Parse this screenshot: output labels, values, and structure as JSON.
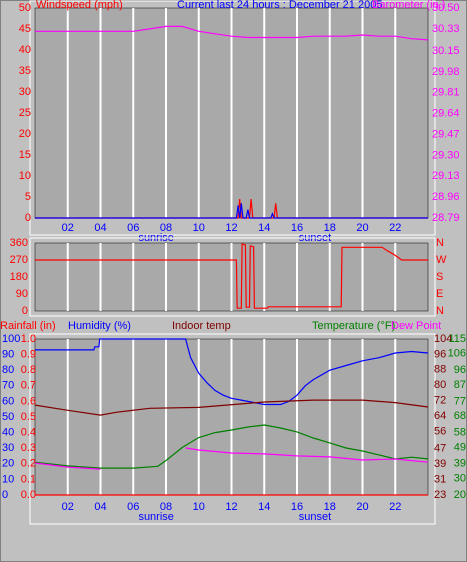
{
  "chart_data": [
    {
      "type": "line",
      "title": "Current last 24 hours : December 21 2005",
      "ylabel": "Windspeed (mph)",
      "y2label": "Barometer (in.)",
      "xlim": [
        0,
        24
      ],
      "xticks": [
        {
          "value": 2,
          "label": "02"
        },
        {
          "value": 4,
          "label": "04"
        },
        {
          "value": 6,
          "label": "06"
        },
        {
          "value": 8,
          "label": "08"
        },
        10,
        12,
        14,
        16,
        18,
        20,
        22
      ],
      "annotations": [
        "sunrise",
        "sunset"
      ],
      "ylim": [
        0,
        50
      ],
      "yticks": [
        0,
        5,
        10,
        15,
        20,
        25,
        30,
        35,
        40,
        45,
        50
      ],
      "y2lim": [
        28.79,
        30.5
      ],
      "y2ticks": [
        28.79,
        28.96,
        29.13,
        {
          "value": 29.3,
          "label": "29.30"
        },
        29.47,
        29.64,
        29.81,
        29.98,
        30.15,
        30.33,
        {
          "value": 30.5,
          "label": "30.50"
        }
      ],
      "axis_colors": {
        "y": "#ff0000",
        "y2": "#ff00ff"
      },
      "grid": true,
      "series": [
        {
          "axis": "y2",
          "color": "#ff00ff",
          "x": [
            0,
            2,
            4,
            6,
            7,
            8,
            8.5,
            9,
            9.5,
            10,
            11,
            12,
            13,
            14,
            15,
            16,
            17,
            18,
            19,
            20,
            21,
            22,
            23,
            24
          ],
          "values": [
            30.31,
            30.31,
            30.31,
            30.31,
            30.33,
            30.35,
            30.35,
            30.35,
            30.33,
            30.31,
            30.29,
            30.27,
            30.26,
            30.26,
            30.26,
            30.26,
            30.27,
            30.27,
            30.27,
            30.28,
            30.27,
            30.27,
            30.25,
            30.24
          ]
        },
        {
          "axis": "y",
          "color": "#ff0000",
          "x": [
            0,
            12.4,
            12.5,
            12.6,
            13.1,
            13.2,
            13.3,
            14.6,
            14.7,
            14.8,
            24
          ],
          "values": [
            0,
            0,
            4.5,
            0,
            0,
            4.5,
            0,
            0,
            3.5,
            0,
            0
          ]
        },
        {
          "axis": "y",
          "color": "#0000ff",
          "x": [
            0,
            12.3,
            12.4,
            12.5,
            12.6,
            12.7,
            12.9,
            13.0,
            13.1,
            14.4,
            14.5,
            14.6,
            24
          ],
          "values": [
            0,
            0,
            3,
            0,
            3.5,
            0,
            0,
            2,
            0,
            0,
            1,
            0,
            0
          ]
        }
      ]
    },
    {
      "type": "line",
      "xlim": [
        0,
        24
      ],
      "xticks": [
        {
          "value": 2,
          "label": "02"
        },
        {
          "value": 4,
          "label": "04"
        },
        {
          "value": 6,
          "label": "06"
        },
        {
          "value": 8,
          "label": "08"
        },
        10,
        12,
        14,
        16,
        18,
        20,
        22
      ],
      "ylim": [
        0,
        360
      ],
      "yticks": [
        0,
        90,
        180,
        270,
        360
      ],
      "y2lim": [
        0,
        360
      ],
      "y2ticks": [
        {
          "value": 0,
          "label": "N"
        },
        {
          "value": 90,
          "label": "E"
        },
        {
          "value": 180,
          "label": "S"
        },
        {
          "value": 270,
          "label": "W"
        },
        {
          "value": 360,
          "label": "N"
        }
      ],
      "axis_colors": {
        "y": "#ff0000",
        "y2": "#ff0000"
      },
      "grid": true,
      "series": [
        {
          "axis": "y",
          "color": "#ff0000",
          "x": [
            0,
            12.3,
            12.35,
            12.6,
            12.65,
            12.85,
            12.9,
            13.1,
            13.15,
            13.35,
            13.4,
            14.2,
            14.25,
            18.7,
            18.75,
            21.2,
            21.5,
            21.9,
            22.4,
            24
          ],
          "values": [
            270,
            270,
            15,
            15,
            355,
            350,
            20,
            20,
            345,
            340,
            15,
            15,
            22,
            22,
            337,
            337,
            320,
            300,
            270,
            270
          ]
        }
      ]
    },
    {
      "type": "line",
      "xlim": [
        0,
        24
      ],
      "xticks": [
        {
          "value": 2,
          "label": "02"
        },
        {
          "value": 4,
          "label": "04"
        },
        {
          "value": 6,
          "label": "06"
        },
        {
          "value": 8,
          "label": "08"
        },
        10,
        12,
        14,
        16,
        18,
        20,
        22
      ],
      "annotations": [
        "sunrise",
        "sunset"
      ],
      "ylim": [
        0,
        1
      ],
      "yticks": [
        {
          "value": 0,
          "label": "0.0"
        },
        0.1,
        0.2,
        0.3,
        0.4,
        0.5,
        0.6,
        0.7,
        0.8,
        0.9,
        {
          "value": 1,
          "label": "1.0"
        }
      ],
      "y3lim": [
        0,
        100
      ],
      "y3ticks": [
        0,
        10,
        20,
        30,
        40,
        50,
        60,
        70,
        80,
        90,
        100
      ],
      "y4lim": [
        23,
        104
      ],
      "y4ticks": [
        23,
        31,
        39,
        47,
        56,
        64,
        72,
        80,
        88,
        96,
        104
      ],
      "y2lim": [
        20,
        115
      ],
      "y2ticks": [
        20,
        30,
        39,
        49,
        58,
        68,
        77,
        87,
        96,
        106,
        115
      ],
      "axis_colors": {
        "y": "#ff0000",
        "y3": "#0000ff",
        "y4": "#800000",
        "y2": "#008000"
      },
      "grid": true,
      "series": [
        {
          "name": "Rainfall (in)",
          "axis": "y",
          "color": "#ff0000",
          "x": [
            0,
            24
          ],
          "values": [
            0,
            0
          ]
        },
        {
          "name": "Humidity (%)",
          "axis": "y3",
          "color": "#0000ff",
          "x": [
            0,
            3.6,
            3.65,
            3.9,
            3.95,
            9.2,
            9.5,
            10,
            10.5,
            11,
            11.5,
            12,
            13,
            14,
            15,
            15.5,
            16,
            16.5,
            17,
            18,
            19,
            20,
            21,
            22,
            23,
            24
          ],
          "values": [
            93,
            93,
            95,
            95,
            100,
            100,
            88,
            78,
            72,
            67,
            64,
            62,
            60,
            58,
            58,
            60,
            64,
            70,
            74,
            80,
            83,
            86,
            88,
            91,
            92,
            91
          ]
        },
        {
          "name": "Indoor temp",
          "axis": "y4",
          "color": "#800000",
          "x": [
            0,
            2,
            4,
            5,
            7,
            10,
            14,
            17,
            20,
            22,
            24
          ],
          "values": [
            69.7,
            67,
            64.5,
            66,
            68,
            68.5,
            71.3,
            72.3,
            72.3,
            71,
            68.7
          ]
        },
        {
          "name": "Temperature (°F)",
          "axis": "y2",
          "color": "#008000",
          "x": [
            0,
            2,
            4,
            6,
            7.5,
            8,
            9,
            10,
            11,
            12,
            13,
            14,
            15,
            16,
            17,
            18,
            19,
            20,
            21,
            22,
            23,
            24
          ],
          "values": [
            40,
            37.7,
            36.4,
            36.4,
            37.5,
            41,
            49,
            55,
            58,
            59.6,
            61.4,
            62.6,
            60.8,
            58.4,
            54.7,
            51.7,
            48.6,
            46.8,
            44.4,
            41.9,
            43,
            42
          ]
        },
        {
          "name": "Dew Point",
          "axis": "y2",
          "color": "#ff00ff",
          "x": [
            0,
            2,
            4,
            6,
            9.2,
            10,
            12,
            14,
            16,
            18,
            20,
            22,
            24
          ],
          "values": [
            39.5,
            37,
            35.8,
            null,
            48.6,
            47.4,
            45.6,
            45,
            43.8,
            43.2,
            41.3,
            41.9,
            40
          ]
        }
      ]
    }
  ]
}
